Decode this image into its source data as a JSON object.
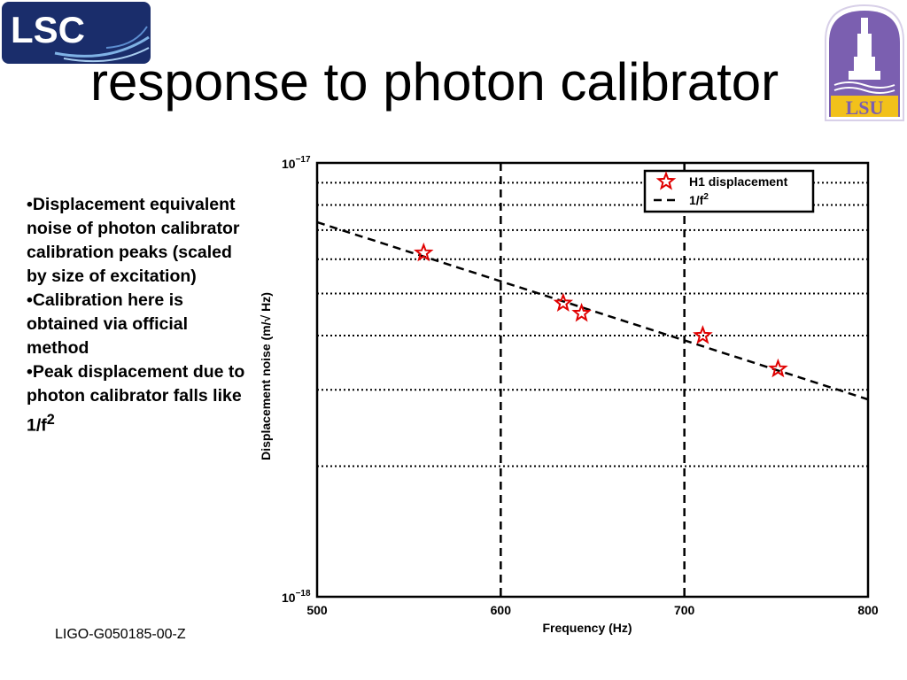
{
  "slide": {
    "title": "response to photon calibrator",
    "bullets": [
      "Displacement equivalent noise of photon calibrator calibration peaks (scaled by size of excitation)",
      "Calibration here is obtained via official method",
      "Peak displacement due to photon calibrator falls like 1/f"
    ],
    "bullet3_superscript": "2",
    "footer": "LIGO-G050185-00-Z"
  },
  "logos": {
    "left": {
      "text": "LSC",
      "color": "#1a2d6b"
    },
    "right": {
      "text": "LSU",
      "color": "#7b5fb0",
      "accent": "#f2c11a"
    }
  },
  "chart_data": {
    "type": "scatter",
    "xlabel": "Frequency (Hz)",
    "ylabel": "Displacement noise (m/√ Hz)",
    "xlim": [
      500,
      800
    ],
    "ylim": [
      1e-18,
      1e-17
    ],
    "yscale": "log",
    "xticks": [
      500,
      600,
      700,
      800
    ],
    "xtick_labels": [
      "500",
      "600",
      "700",
      "800"
    ],
    "yticks": [
      1e-18,
      1e-17
    ],
    "ytick_labels": [
      {
        "base": "10",
        "exp": "−18"
      },
      {
        "base": "10",
        "exp": "−17"
      }
    ],
    "grid": true,
    "legend_position": "top-right",
    "series": [
      {
        "name": "H1 displacement",
        "marker": "star",
        "color": "#e00000",
        "x": [
          558,
          634,
          644,
          710,
          751
        ],
        "y": [
          6.2e-18,
          4.75e-18,
          4.5e-18,
          4e-18,
          3.35e-18
        ]
      },
      {
        "name": "1/f",
        "name_superscript": "2",
        "style": "dashed",
        "color": "#000000",
        "x": [
          500,
          800
        ],
        "y": [
          7.3e-18,
          2.85e-18
        ]
      }
    ]
  }
}
